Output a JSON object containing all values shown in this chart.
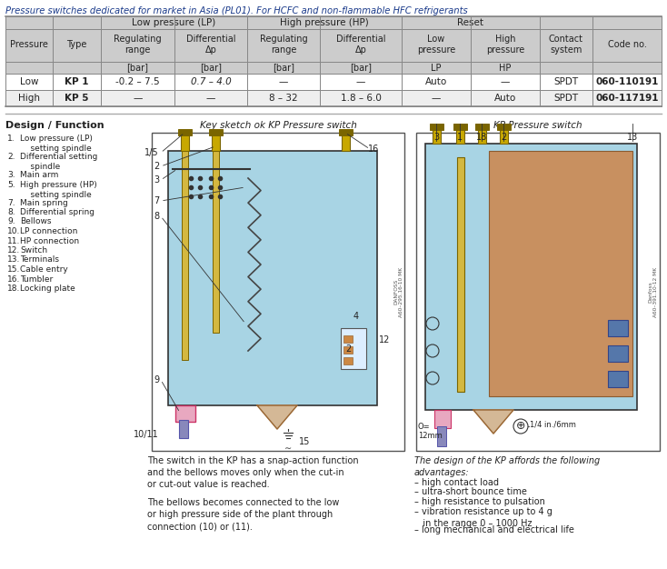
{
  "title_text": "Pressure switches dedicated for market in Asia (PL01). For HCFC and non-flammable HFC refrigerants",
  "bg_color": "#ffffff",
  "rows": [
    [
      "Low",
      "KP 1",
      "-0.2 – 7.5",
      "0.7 – 4.0",
      "—",
      "—",
      "Auto",
      "—",
      "SPDT",
      "060-110191"
    ],
    [
      "High",
      "KP 5",
      "—",
      "—",
      "8 – 32",
      "1.8 – 6.0",
      "—",
      "Auto",
      "SPDT",
      "060-117191"
    ]
  ],
  "section_design_title": "Design / Function",
  "design_list": [
    [
      "1.",
      "Low pressure (LP)\n    setting spindle"
    ],
    [
      "2.",
      "Differential setting\n    spindle"
    ],
    [
      "3.",
      "Main arm"
    ],
    [
      "5.",
      "High pressure (HP)\n    setting spindle"
    ],
    [
      "7.",
      "Main spring"
    ],
    [
      "8.",
      "Differential spring"
    ],
    [
      "9.",
      "Bellows"
    ],
    [
      "10.",
      "LP connection"
    ],
    [
      "11.",
      "HP connection"
    ],
    [
      "12.",
      "Switch"
    ],
    [
      "13.",
      "Terminals"
    ],
    [
      "15.",
      "Cable entry"
    ],
    [
      "16.",
      "Tumbler"
    ],
    [
      "18.",
      "Locking plate"
    ]
  ],
  "sketch_title": "Key sketch ok KP Pressure switch",
  "photo_title": "KP Pressure switch",
  "desc_text1": "The switch in the KP has a snap-action function\nand the bellows moves only when the cut-in\nor cut-out value is reached.",
  "desc_text2": "The bellows becomes connected to the low\nor high pressure side of the plant through\nconnection (10) or (11).",
  "advantages_title": "The design of the KP affords the following\nadvantages:",
  "advantages_list": [
    "– high contact load",
    "– ultra-short bounce time",
    "– high resistance to pulsation",
    "– vibration resistance up to 4 g\n   in the range 0 – 1000 Hz",
    "– long mechanical and electrical life"
  ],
  "spindle_color": "#c8a800",
  "spindle_dark": "#7a6500",
  "body_blue": "#a8d4e4",
  "bellow_pink": "#e8a8c0",
  "hp_tan": "#d4b896",
  "brown": "#c89060",
  "blue_cap": "#5577aa",
  "text_color": "#222222",
  "text_blue": "#1a3a8a",
  "header_gray": "#cccccc",
  "row1_bg": "#ffffff",
  "row2_bg": "#eeeeee"
}
